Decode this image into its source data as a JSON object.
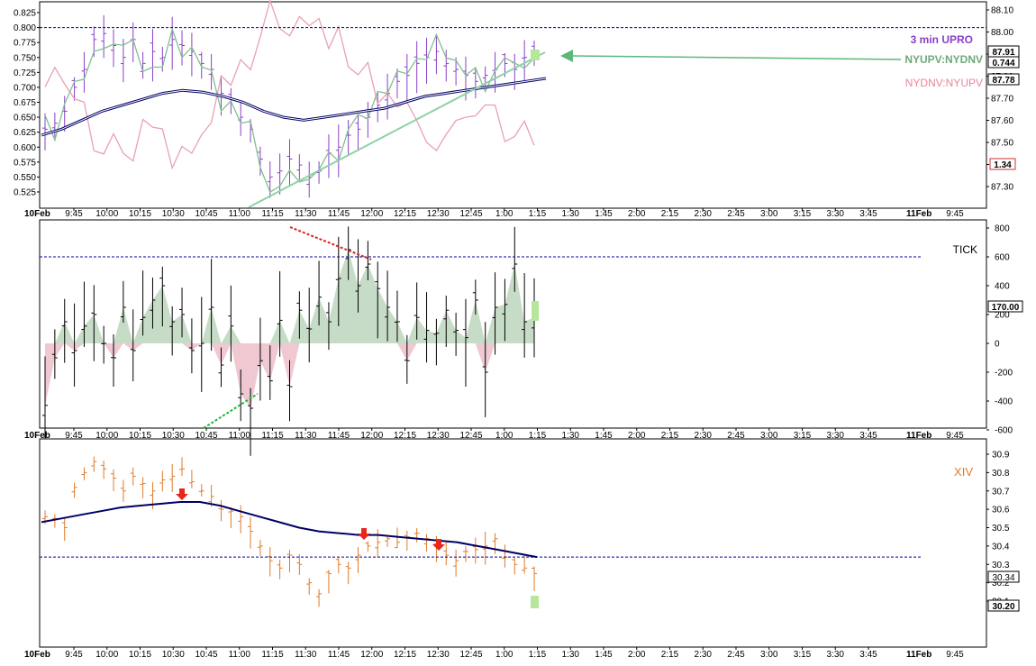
{
  "chart_data": [
    {
      "type": "ohlc",
      "panel": "top",
      "labels": {
        "upro": "3 min UPRO",
        "nyupv": "NYUPV:NYDNV",
        "nydnv": "NYDNV:NYUPV"
      },
      "left_axis": {
        "ylim": [
          0.51,
          0.845
        ],
        "ticks": [
          "0.825",
          "0.800",
          "0.775",
          "0.750",
          "0.725",
          "0.700",
          "0.675",
          "0.650",
          "0.625",
          "0.600",
          "0.575",
          "0.550",
          "0.525"
        ]
      },
      "right_axis": {
        "ylim": [
          87.21,
          88.14
        ],
        "ticks": [
          "88.10",
          "88.00",
          "87.90",
          "87.80",
          "87.70",
          "87.60",
          "87.50",
          "87.40",
          "87.30"
        ]
      },
      "readouts": {
        "upro_last": "87.91",
        "ratio_last": "0.744",
        "ma_last": "87.78",
        "nydnv_last": "1.34"
      },
      "ref_line": 0.8,
      "colors": {
        "upro": "#8a3fc8",
        "ratio_up": "#7fc08e",
        "ratio_dn": "#e8a0b6",
        "ma": "#000066"
      }
    },
    {
      "type": "ohlc",
      "panel": "middle",
      "label": "TICK",
      "ylim": [
        -790,
        810
      ],
      "ticks": [
        "800",
        "600",
        "400",
        "200",
        "0",
        "-200",
        "-400",
        "-600"
      ],
      "readout": "170.00",
      "ref_line": 600,
      "colors": {
        "bars": "#000000",
        "pos_fill": "#c7dcc7",
        "neg_fill": "#efc8d2"
      }
    },
    {
      "type": "ohlc",
      "panel": "bottom",
      "label": "XIV",
      "ylim": [
        30.01,
        30.95
      ],
      "ticks": [
        "30.9",
        "30.8",
        "30.7",
        "30.6",
        "30.5",
        "30.4",
        "30.3",
        "30.2",
        "30.1"
      ],
      "readouts": {
        "ref": "30.34",
        "last": "30.20"
      },
      "ref_line": 30.34,
      "colors": {
        "bars": "#e07a28",
        "ma": "#000066",
        "arrows": "#e8261a"
      }
    }
  ],
  "x_axis": {
    "day_start": "10Feb",
    "day_end": "11Feb",
    "times": [
      "9:45",
      "10:00",
      "10:15",
      "10:30",
      "10:45",
      "11:00",
      "11:15",
      "11:30",
      "11:45",
      "12:00",
      "12:15",
      "12:30",
      "12:45",
      "1:00",
      "1:15",
      "1:30",
      "1:45",
      "2:00",
      "2:15",
      "2:30",
      "2:45",
      "3:00",
      "3:15",
      "3:30",
      "3:45"
    ],
    "after_end": "9:45"
  }
}
